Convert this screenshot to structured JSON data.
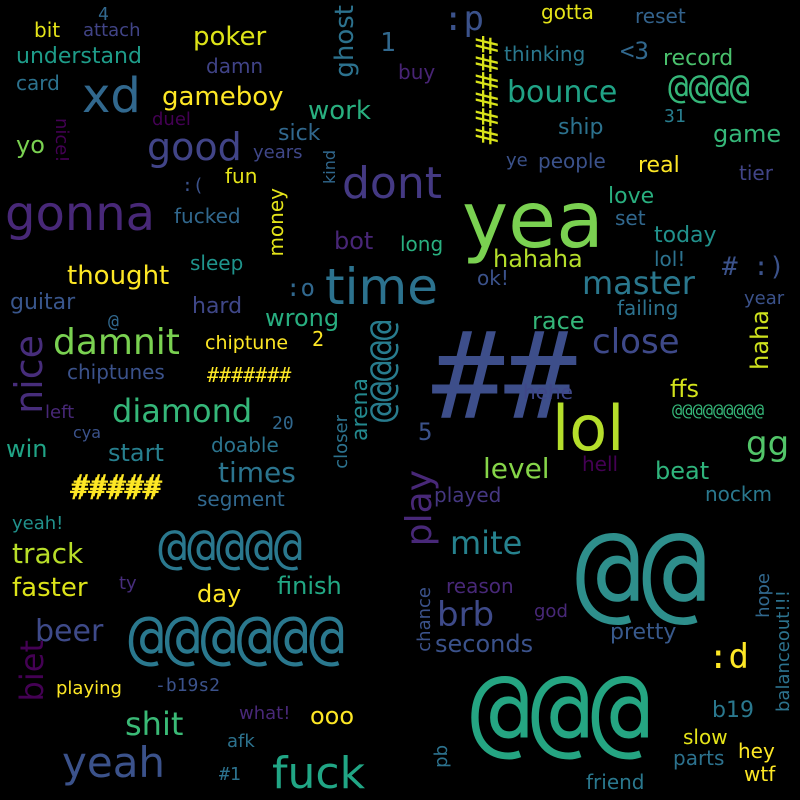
{
  "background": "#000000",
  "words": [
    {
      "text": "@@",
      "color": "#2e8f8c"
    },
    {
      "text": "yea",
      "color": "#7ad151"
    },
    {
      "text": "@@@",
      "color": "#25a582"
    },
    {
      "text": "##",
      "color": "#3d4e8a"
    },
    {
      "text": "lol",
      "color": "#b5de2b"
    },
    {
      "text": "time",
      "color": "#2c728e"
    },
    {
      "text": "@@@@@@",
      "color": "#2a788e"
    },
    {
      "text": "gonna",
      "color": "#482878"
    },
    {
      "text": "xd",
      "color": "#31688e"
    },
    {
      "text": "dont",
      "color": "#443983"
    },
    {
      "text": "@@@@@",
      "color": "#2a788e"
    },
    {
      "text": "fuck",
      "color": "#21a685"
    },
    {
      "text": "yeah",
      "color": "#3b528b"
    },
    {
      "text": "damnit",
      "color": "#7ad151"
    },
    {
      "text": "nice",
      "color": "#472d7b"
    },
    {
      "text": "good",
      "color": "#414487"
    },
    {
      "text": "#####",
      "color": "#fde725"
    },
    {
      "text": ":p",
      "color": "#3b528b"
    },
    {
      "text": "######",
      "color": "#d8e219"
    },
    {
      "text": "play",
      "color": "#482878"
    },
    {
      "text": "@@@@@",
      "color": "#287c8e"
    },
    {
      "text": "master",
      "color": "#2a788e"
    },
    {
      "text": "close",
      "color": "#3e4989"
    },
    {
      "text": "brb",
      "color": "#3e4a89"
    },
    {
      "text": "diamond",
      "color": "#35b779"
    },
    {
      "text": "@@@@",
      "color": "#35b779"
    },
    {
      "text": "bounce",
      "color": "#20a386"
    },
    {
      "text": "gg",
      "color": "#52c569"
    },
    {
      "text": "beer",
      "color": "#3e4a89"
    },
    {
      "text": "mite",
      "color": "#26828e"
    },
    {
      "text": "track",
      "color": "#b8de29"
    },
    {
      "text": "shit",
      "color": "#3aba76"
    },
    {
      "text": "times",
      "color": "#2b748e"
    },
    {
      "text": "level",
      "color": "#86d549"
    },
    {
      "text": "faster",
      "color": "#dce319"
    },
    {
      "text": "biet",
      "color": "#440154"
    },
    {
      "text": "#####",
      "color": "#fde725"
    },
    {
      "text": "gameboy",
      "color": "#fde725"
    },
    {
      "text": ":d",
      "color": "#fde725"
    },
    {
      "text": "ghost",
      "color": "#2c728e"
    },
    {
      "text": "work",
      "color": "#29af7f"
    },
    {
      "text": "poker",
      "color": "#dde318"
    },
    {
      "text": "thought",
      "color": "#fde725"
    },
    {
      "text": "finish",
      "color": "#22a884"
    },
    {
      "text": "win",
      "color": "#20a486"
    },
    {
      "text": "start",
      "color": "#277f8e"
    },
    {
      "text": "hahaha",
      "color": "#b5de2b"
    },
    {
      "text": "race",
      "color": "#34b679"
    },
    {
      "text": "seconds",
      "color": "#3b528b"
    },
    {
      "text": "day",
      "color": "#fde725"
    },
    {
      "text": "ooo",
      "color": "#fde725"
    },
    {
      "text": "hard",
      "color": "#3f4788"
    },
    {
      "text": "wrong",
      "color": "#28ae80"
    },
    {
      "text": "bot",
      "color": "#482677"
    },
    {
      "text": "love",
      "color": "#29af7f"
    },
    {
      "text": "real",
      "color": "#fde725"
    },
    {
      "text": "ship",
      "color": "#2c728e"
    },
    {
      "text": "game",
      "color": "#35b779"
    },
    {
      "text": "record",
      "color": "#4ac16d"
    },
    {
      "text": "today",
      "color": "#21918c"
    },
    {
      "text": "ffs",
      "color": "#d2e21b"
    },
    {
      "text": "haha",
      "color": "#cde11d"
    },
    {
      "text": "beat",
      "color": "#2fb47c"
    },
    {
      "text": "pretty",
      "color": "#38598c"
    },
    {
      "text": "arena",
      "color": "#23898e"
    },
    {
      "text": "hehe",
      "color": "#3f4788"
    },
    {
      "text": "played",
      "color": "#453781"
    },
    {
      "text": "sick",
      "color": "#31688e"
    },
    {
      "text": "money",
      "color": "#e5e419"
    },
    {
      "text": "guitar",
      "color": "#39568c"
    },
    {
      "text": "chiptune",
      "color": "#fde725"
    },
    {
      "text": "doable",
      "color": "#2b748e"
    },
    {
      "text": "cya",
      "color": "#3b528b"
    },
    {
      "text": "left",
      "color": "#482878"
    },
    {
      "text": "segment",
      "color": "#31688e"
    },
    {
      "text": "yo",
      "color": "#7ad151"
    },
    {
      "text": "people",
      "color": "#3b528b"
    },
    {
      "text": "fun",
      "color": "#e5e419"
    },
    {
      "text": "sleep",
      "color": "#1f948c"
    },
    {
      "text": "fucked",
      "color": "#31688e"
    },
    {
      "text": "years",
      "color": "#3f4788"
    },
    {
      "text": "understand",
      "color": "#1e9c89"
    },
    {
      "text": "card",
      "color": "#2c728e"
    },
    {
      "text": "bit",
      "color": "#e5e419"
    },
    {
      "text": "attach",
      "color": "#414487"
    },
    {
      "text": "damn",
      "color": "#404387"
    },
    {
      "text": "buy",
      "color": "#482475"
    },
    {
      "text": "thinking",
      "color": "#2a788e"
    },
    {
      "text": "gotta",
      "color": "#e5e419"
    },
    {
      "text": "reset",
      "color": "#33638d"
    },
    {
      "text": "<3",
      "color": "#31688e"
    },
    {
      "text": "tier",
      "color": "#414487"
    },
    {
      "text": "ye",
      "color": "#3b528b"
    },
    {
      "text": "31",
      "color": "#287d8e"
    },
    {
      "text": "1",
      "color": "#31688e"
    },
    {
      "text": "4",
      "color": "#31688e"
    },
    {
      "text": "duel",
      "color": "#440154"
    },
    {
      "text": "nice!",
      "color": "#440154"
    },
    {
      "text": ":(",
      "color": "#3b528b"
    },
    {
      "text": "kind",
      "color": "#31688e"
    },
    {
      "text": "long",
      "color": "#29af7f"
    },
    {
      "text": "set",
      "color": "#31688e"
    },
    {
      "text": "lol!",
      "color": "#2c728e"
    },
    {
      "text": "# :)",
      "color": "#3b528b"
    },
    {
      "text": "year",
      "color": "#3b528b"
    },
    {
      "text": ":o",
      "color": "#31688e"
    },
    {
      "text": "ok!",
      "color": "#3b528b"
    },
    {
      "text": "failing",
      "color": "#2c728e"
    },
    {
      "text": "@",
      "color": "#31688e"
    },
    {
      "text": "2",
      "color": "#fde725"
    },
    {
      "text": "chiptunes",
      "color": "#3b528b"
    },
    {
      "text": "#######",
      "color": "#fde725"
    },
    {
      "text": "@@@@@@@@@",
      "color": "#35b779"
    },
    {
      "text": "20",
      "color": "#31688e"
    },
    {
      "text": "5",
      "color": "#3b528b"
    },
    {
      "text": "closer",
      "color": "#2c728e"
    },
    {
      "text": "hell",
      "color": "#440154"
    },
    {
      "text": "nockm",
      "color": "#2a788e"
    },
    {
      "text": "yeah!",
      "color": "#21918c"
    },
    {
      "text": "ty",
      "color": "#472d7b"
    },
    {
      "text": "reason",
      "color": "#482878"
    },
    {
      "text": "chance",
      "color": "#3b528b"
    },
    {
      "text": "god",
      "color": "#482878"
    },
    {
      "text": "hope",
      "color": "#31688e"
    },
    {
      "text": "balanceout!!!",
      "color": "#2c728e"
    },
    {
      "text": "playing",
      "color": "#fde725"
    },
    {
      "text": "-b19s2",
      "color": "#3b528b"
    },
    {
      "text": "what!",
      "color": "#482878"
    },
    {
      "text": "afk",
      "color": "#2c728e"
    },
    {
      "text": "#1",
      "color": "#2c728e"
    },
    {
      "text": "pb",
      "color": "#2c728e"
    },
    {
      "text": "b19",
      "color": "#2a788e"
    },
    {
      "text": "slow",
      "color": "#e5e419"
    },
    {
      "text": "parts",
      "color": "#2c728e"
    },
    {
      "text": "hey",
      "color": "#fde725"
    },
    {
      "text": "wtf",
      "color": "#fde725"
    },
    {
      "text": "friend",
      "color": "#2a788e"
    }
  ]
}
